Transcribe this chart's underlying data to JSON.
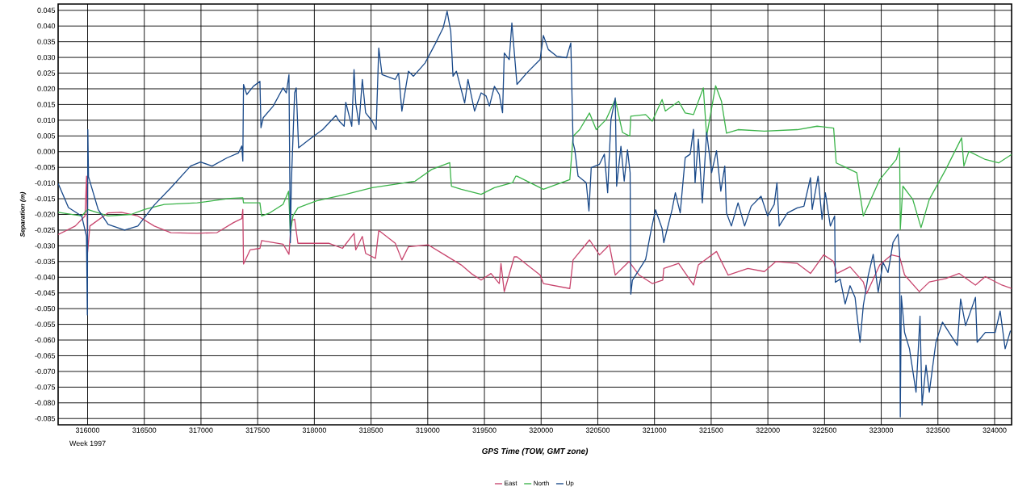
{
  "chart_data": {
    "type": "line",
    "xlabel": "GPS Time (TOW, GMT zone)",
    "ylabel": "Separation (m)",
    "annotations": [
      "Week 1997"
    ],
    "xlim": [
      315740,
      324150
    ],
    "ylim": [
      -0.087,
      0.047
    ],
    "xticks": [
      316000,
      316500,
      317000,
      317500,
      318000,
      318500,
      319000,
      319500,
      320000,
      320500,
      321000,
      321500,
      322000,
      322500,
      323000,
      323500,
      324000
    ],
    "yticks": [
      {
        "value": -0.085,
        "label": "-0.085"
      },
      {
        "value": -0.08,
        "label": "-0.080"
      },
      {
        "value": -0.075,
        "label": "-0.075"
      },
      {
        "value": -0.07,
        "label": "-0.070"
      },
      {
        "value": -0.065,
        "label": "-0.065"
      },
      {
        "value": -0.06,
        "label": "-0.060"
      },
      {
        "value": -0.055,
        "label": "-0.055"
      },
      {
        "value": -0.05,
        "label": "-0.050"
      },
      {
        "value": -0.045,
        "label": "-0.045"
      },
      {
        "value": -0.04,
        "label": "-0.040"
      },
      {
        "value": -0.035,
        "label": "-0.035"
      },
      {
        "value": -0.03,
        "label": "-0.030"
      },
      {
        "value": -0.025,
        "label": "-0.025"
      },
      {
        "value": -0.02,
        "label": "-0.020"
      },
      {
        "value": -0.015,
        "label": "-0.015"
      },
      {
        "value": -0.01,
        "label": "-0.010"
      },
      {
        "value": -0.005,
        "label": "-0.005"
      },
      {
        "value": 0,
        "label": "0.000"
      },
      {
        "value": 0.005,
        "label": "0.005"
      },
      {
        "value": 0.01,
        "label": "0.010"
      },
      {
        "value": 0.015,
        "label": "0.015"
      },
      {
        "value": 0.02,
        "label": "0.020"
      },
      {
        "value": 0.025,
        "label": "0.025"
      },
      {
        "value": 0.03,
        "label": "0.030"
      },
      {
        "value": 0.035,
        "label": "0.035"
      },
      {
        "value": 0.04,
        "label": "0.040"
      },
      {
        "value": 0.045,
        "label": "0.045"
      }
    ],
    "grid": true,
    "legend": "bottom",
    "marker": "none",
    "line_style": "solid",
    "series": [
      {
        "name": "East",
        "color": "#c8466e",
        "x": [
          315740,
          315891,
          315977,
          315991,
          316000,
          316020,
          316181,
          316297,
          316443,
          316588,
          316734,
          316967,
          317141,
          317287,
          317360,
          317369,
          317375,
          317433,
          317520,
          317535,
          317724,
          317776,
          317797,
          317826,
          317855,
          318131,
          318248,
          318350,
          318365,
          318423,
          318452,
          318539,
          318568,
          318714,
          318772,
          318830,
          319005,
          319150,
          319296,
          319383,
          319471,
          319558,
          319631,
          319646,
          319675,
          319763,
          319787,
          319991,
          320020,
          320253,
          320282,
          320427,
          320515,
          320602,
          320654,
          320776,
          320864,
          320980,
          321073,
          321082,
          321213,
          321344,
          321387,
          321547,
          321649,
          321824,
          321969,
          322071,
          322260,
          322376,
          322492,
          322580,
          322609,
          322725,
          322842,
          322871,
          322987,
          323089,
          323162,
          323206,
          323336,
          323424,
          323569,
          323686,
          323831,
          323918,
          324064,
          324150
        ],
        "values": [
          -0.0264,
          -0.0237,
          -0.0205,
          -0.0078,
          -0.032,
          -0.0237,
          -0.0195,
          -0.0193,
          -0.0205,
          -0.0237,
          -0.0258,
          -0.026,
          -0.0258,
          -0.0226,
          -0.0213,
          -0.0184,
          -0.0358,
          -0.0313,
          -0.0308,
          -0.0283,
          -0.0295,
          -0.0327,
          -0.022,
          -0.0215,
          -0.0292,
          -0.0292,
          -0.0308,
          -0.026,
          -0.0313,
          -0.027,
          -0.0324,
          -0.034,
          -0.0251,
          -0.0292,
          -0.0345,
          -0.0303,
          -0.0297,
          -0.0329,
          -0.0361,
          -0.0388,
          -0.0409,
          -0.0388,
          -0.042,
          -0.0356,
          -0.0446,
          -0.0335,
          -0.0335,
          -0.0393,
          -0.042,
          -0.0436,
          -0.0345,
          -0.0281,
          -0.0329,
          -0.0297,
          -0.0393,
          -0.035,
          -0.0393,
          -0.042,
          -0.0409,
          -0.0372,
          -0.0356,
          -0.0425,
          -0.0361,
          -0.0318,
          -0.0393,
          -0.0372,
          -0.0382,
          -0.035,
          -0.0356,
          -0.0388,
          -0.0329,
          -0.035,
          -0.0388,
          -0.0367,
          -0.0415,
          -0.0452,
          -0.0361,
          -0.0329,
          -0.0335,
          -0.0393,
          -0.0446,
          -0.0415,
          -0.0404,
          -0.0388,
          -0.0425,
          -0.0398,
          -0.0425,
          -0.0436
        ]
      },
      {
        "name": "North",
        "color": "#3cb44a",
        "x": [
          315740,
          315948,
          316000,
          316181,
          316384,
          316501,
          316676,
          316967,
          317258,
          317369,
          317375,
          317520,
          317535,
          317607,
          317724,
          317773,
          317788,
          317811,
          317855,
          318015,
          318277,
          318510,
          318714,
          318889,
          319034,
          319194,
          319209,
          319296,
          319471,
          319588,
          319748,
          319777,
          319787,
          320020,
          320253,
          320282,
          320340,
          320427,
          320486,
          320573,
          320654,
          320718,
          320782,
          320791,
          320922,
          320980,
          321067,
          321096,
          321213,
          321271,
          321344,
          321431,
          321460,
          321539,
          321591,
          321635,
          321737,
          321969,
          322260,
          322434,
          322580,
          322603,
          322696,
          322784,
          322842,
          322987,
          323133,
          323162,
          323168,
          323191,
          323278,
          323351,
          323424,
          323569,
          323709,
          323729,
          323773,
          323918,
          324035,
          324150
        ],
        "values": [
          -0.0193,
          -0.0205,
          -0.0184,
          -0.0205,
          -0.02,
          -0.0184,
          -0.0168,
          -0.0163,
          -0.0149,
          -0.0147,
          -0.0163,
          -0.0163,
          -0.0205,
          -0.0195,
          -0.0168,
          -0.0126,
          -0.0258,
          -0.0205,
          -0.0179,
          -0.0157,
          -0.0136,
          -0.0115,
          -0.0104,
          -0.0094,
          -0.0057,
          -0.0035,
          -0.011,
          -0.012,
          -0.0136,
          -0.0115,
          -0.0099,
          -0.0078,
          -0.0078,
          -0.012,
          -0.0089,
          0.0049,
          0.007,
          0.0123,
          0.007,
          0.0102,
          0.0166,
          0.0061,
          0.0049,
          0.0113,
          0.0118,
          0.0097,
          0.0166,
          0.0129,
          0.016,
          0.0123,
          0.0118,
          0.0203,
          0.0049,
          0.021,
          0.016,
          0.0059,
          0.007,
          0.0065,
          0.007,
          0.0081,
          0.0075,
          -0.0036,
          -0.0052,
          -0.0067,
          -0.0205,
          -0.0089,
          -0.0025,
          0.0012,
          -0.0248,
          -0.011,
          -0.0152,
          -0.0242,
          -0.0152,
          -0.0057,
          0.0044,
          -0.0046,
          0.0001,
          -0.0025,
          -0.0036,
          -0.0009
        ]
      },
      {
        "name": "Up",
        "color": "#1a4a8a",
        "x": [
          315740,
          315831,
          315948,
          315990,
          315998,
          316002,
          316008,
          316093,
          316181,
          316326,
          316443,
          316588,
          316734,
          316908,
          316996,
          317098,
          317229,
          317331,
          317360,
          317369,
          317375,
          317404,
          317462,
          317520,
          317529,
          317549,
          317637,
          317724,
          317753,
          317776,
          317788,
          317797,
          317826,
          317840,
          317861,
          317957,
          318073,
          318190,
          318219,
          318263,
          318277,
          318330,
          318350,
          318365,
          318394,
          318423,
          318452,
          318510,
          318545,
          318568,
          318597,
          318714,
          318743,
          318772,
          318830,
          318874,
          318976,
          319063,
          319136,
          319171,
          319203,
          319223,
          319253,
          319326,
          319355,
          319413,
          319471,
          319515,
          319544,
          319588,
          319631,
          319660,
          319675,
          319719,
          319742,
          319787,
          319875,
          319991,
          320020,
          320064,
          320137,
          320224,
          320262,
          320282,
          320297,
          320326,
          320398,
          320422,
          320442,
          320515,
          320558,
          320587,
          320616,
          320654,
          320666,
          320704,
          320733,
          320762,
          320785,
          320791,
          320805,
          320922,
          320966,
          321009,
          321067,
          321082,
          321155,
          321184,
          321227,
          321271,
          321315,
          321344,
          321358,
          321387,
          321422,
          321460,
          321504,
          321547,
          321585,
          321620,
          321635,
          321678,
          321737,
          321795,
          321853,
          321940,
          321998,
          322056,
          322080,
          322100,
          322173,
          322260,
          322318,
          322376,
          322391,
          322443,
          322478,
          322507,
          322551,
          322589,
          322595,
          322638,
          322682,
          322725,
          322769,
          322813,
          322842,
          322885,
          322929,
          322973,
          323016,
          323060,
          323104,
          323148,
          323162,
          323168,
          323177,
          323206,
          323249,
          323307,
          323342,
          323360,
          323395,
          323424,
          323482,
          323540,
          323598,
          323671,
          323700,
          323744,
          323831,
          323846,
          323918,
          324005,
          324049,
          324093,
          324140
        ],
        "values": [
          -0.0101,
          -0.0178,
          -0.0205,
          -0.027,
          -0.052,
          0.007,
          -0.008,
          -0.0184,
          -0.0232,
          -0.025,
          -0.0237,
          -0.017,
          -0.0115,
          -0.0046,
          -0.0033,
          -0.0046,
          -0.002,
          -0.0004,
          0.0018,
          -0.003,
          0.0214,
          0.0182,
          0.0208,
          0.0224,
          0.0076,
          0.0108,
          0.0145,
          0.0203,
          0.0187,
          0.0245,
          -0.029,
          -0.01,
          0.0187,
          0.0203,
          0.0012,
          0.0039,
          0.007,
          0.0115,
          0.0097,
          0.0081,
          0.0157,
          0.0081,
          0.0261,
          0.0155,
          0.0086,
          0.023,
          0.0124,
          0.0097,
          0.007,
          0.033,
          0.0245,
          0.023,
          0.025,
          0.0129,
          0.0256,
          0.024,
          0.0282,
          0.0341,
          0.0394,
          0.0447,
          0.0383,
          0.024,
          0.0256,
          0.0155,
          0.023,
          0.0129,
          0.0187,
          0.0177,
          0.0145,
          0.0208,
          0.0182,
          0.0124,
          0.0314,
          0.0293,
          0.041,
          0.0214,
          0.0251,
          0.0293,
          0.037,
          0.0325,
          0.0304,
          0.0299,
          0.0346,
          0.0028,
          0.0006,
          -0.0078,
          -0.0099,
          -0.0189,
          -0.0051,
          -0.004,
          -0.0008,
          -0.0131,
          0.0102,
          0.0171,
          -0.011,
          0.0017,
          -0.0094,
          0.0006,
          -0.0067,
          -0.0454,
          -0.041,
          -0.0343,
          -0.0258,
          -0.0185,
          -0.0245,
          -0.029,
          -0.0185,
          -0.0131,
          -0.0195,
          -0.0019,
          -0.0008,
          0.0071,
          -0.0099,
          0.004,
          -0.0163,
          0.0061,
          -0.0067,
          0.0003,
          -0.0126,
          -0.0046,
          -0.0195,
          -0.0237,
          -0.0163,
          -0.0237,
          -0.0174,
          -0.0142,
          -0.0205,
          -0.0168,
          -0.0099,
          -0.0237,
          -0.0195,
          -0.0179,
          -0.0174,
          -0.0083,
          -0.0184,
          -0.0078,
          -0.0216,
          -0.0131,
          -0.0237,
          -0.0205,
          -0.0416,
          -0.0406,
          -0.0485,
          -0.0427,
          -0.0464,
          -0.0607,
          -0.049,
          -0.0395,
          -0.0327,
          -0.0447,
          -0.0353,
          -0.0385,
          -0.0289,
          -0.0263,
          -0.0321,
          -0.0845,
          -0.0459,
          -0.0576,
          -0.0628,
          -0.0766,
          -0.0524,
          -0.0807,
          -0.068,
          -0.0766,
          -0.0607,
          -0.0543,
          -0.0576,
          -0.0617,
          -0.0469,
          -0.0554,
          -0.0464,
          -0.0607,
          -0.0576,
          -0.0576,
          -0.0508,
          -0.0628,
          -0.057
        ]
      }
    ]
  }
}
